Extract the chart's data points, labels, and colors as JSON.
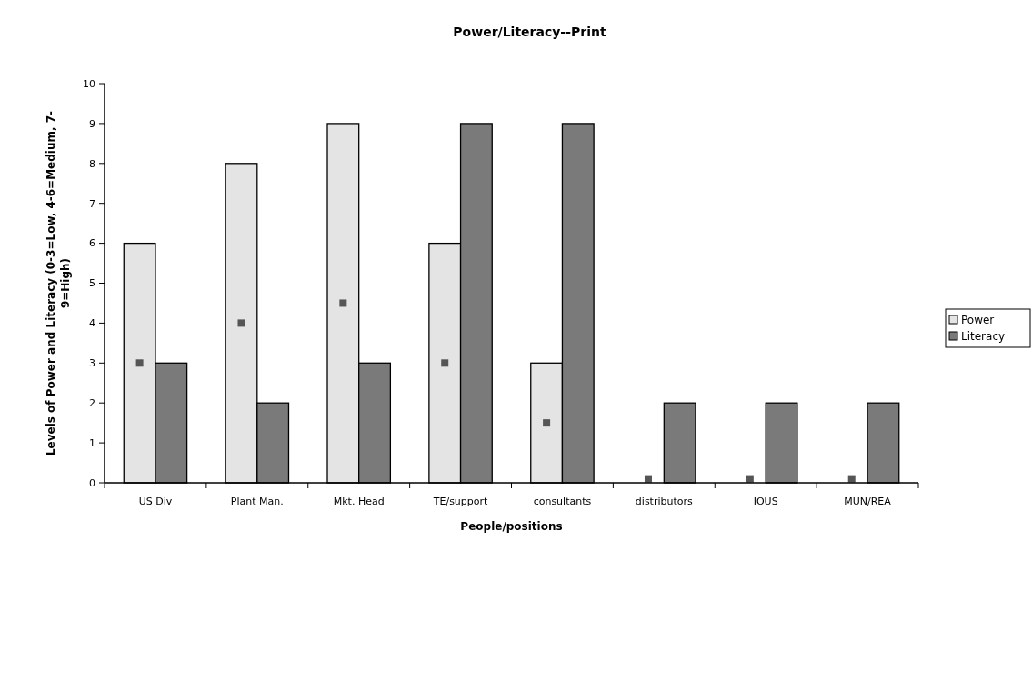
{
  "chart_data": {
    "type": "bar",
    "title": "Power/Literacy--Print",
    "xlabel": "People/positions",
    "ylabel": "Levels of Power and Literacy (0-3=Low, 4-6=Medium, 7-9=High)",
    "categories": [
      "US Div",
      "Plant Man.",
      "Mkt. Head",
      "TE/support",
      "consultants",
      "distributors",
      "IOUS",
      "MUN/REA"
    ],
    "series": [
      {
        "name": "Power",
        "color": "#e4e4e4",
        "values": [
          6,
          8,
          9,
          6,
          3,
          0,
          0,
          0
        ]
      },
      {
        "name": "Literacy",
        "color": "#7a7a7a",
        "values": [
          3,
          2,
          3,
          9,
          9,
          2,
          2,
          2
        ]
      },
      {
        "type": "scatter",
        "color": "#555555",
        "marker": "square",
        "values": [
          3,
          4,
          4.5,
          3,
          1.5,
          0.1,
          0.1,
          0.1
        ]
      }
    ],
    "ylim": [
      0,
      10
    ],
    "yticks": [
      0,
      1,
      2,
      3,
      4,
      5,
      6,
      7,
      8,
      9,
      10
    ],
    "grid": false,
    "legend": "right"
  }
}
